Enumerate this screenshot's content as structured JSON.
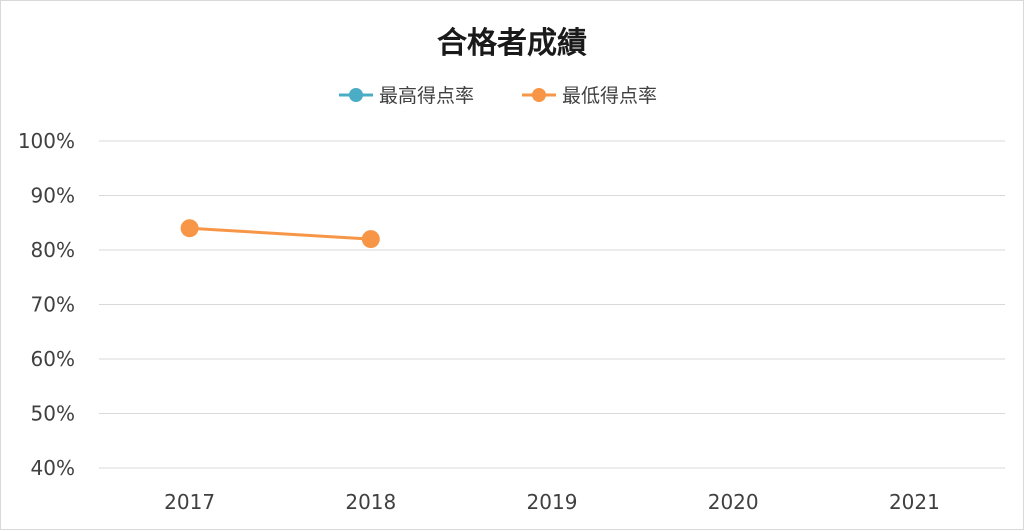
{
  "chart_data": {
    "type": "line",
    "title": "合格者成績",
    "xlabel": "",
    "ylabel": "",
    "categories": [
      "2017",
      "2018",
      "2019",
      "2020",
      "2021"
    ],
    "y_ticks": [
      "100%",
      "90%",
      "80%",
      "70%",
      "60%",
      "50%",
      "40%"
    ],
    "ylim": [
      0.4,
      1.0
    ],
    "grid": true,
    "legend_position": "top",
    "series": [
      {
        "name": "最高得点率",
        "color": "#4bacc6",
        "values": [
          null,
          null,
          null,
          null,
          null
        ]
      },
      {
        "name": "最低得点率",
        "color": "#f79646",
        "values": [
          0.84,
          0.82,
          null,
          null,
          null
        ]
      }
    ]
  }
}
